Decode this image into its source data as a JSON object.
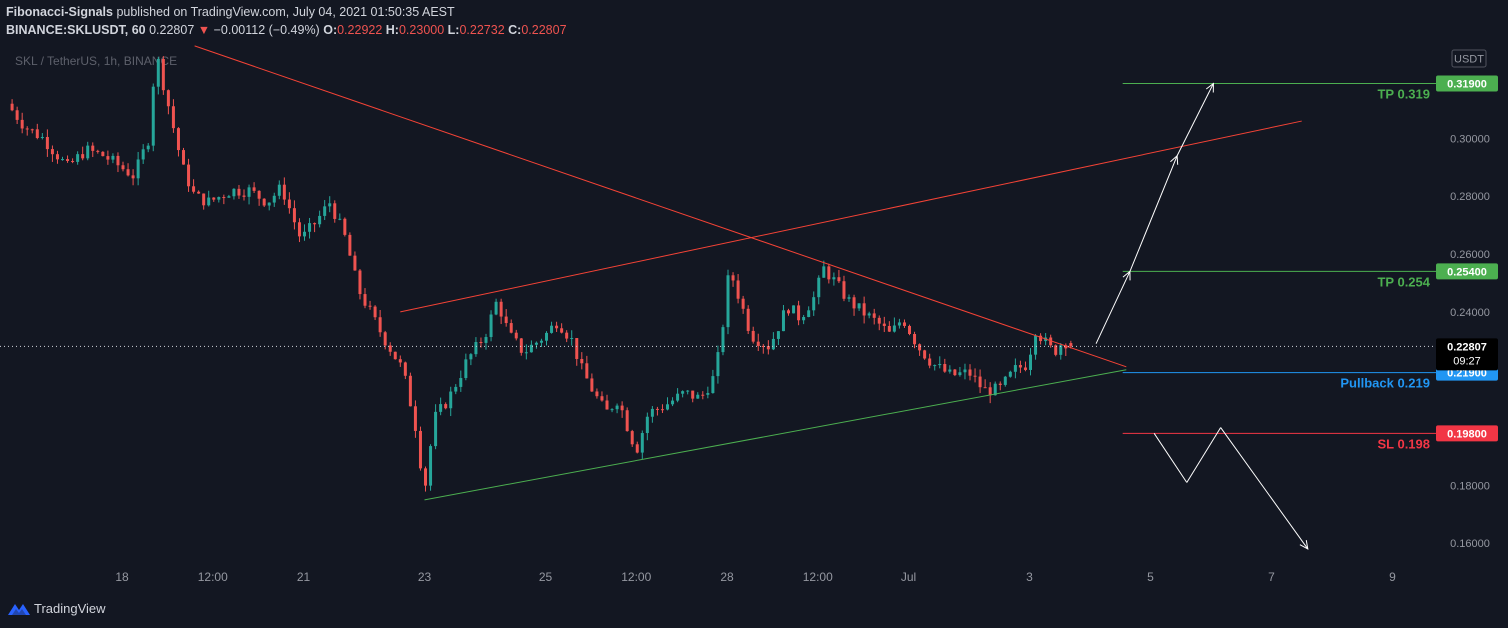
{
  "header": {
    "author": "Fibonacci-Signals",
    "published": "published on TradingView.com, July 04, 2021 01:50:35 AEST",
    "symbol": "BINANCE:SKLUSDT, 60",
    "last": "0.22807",
    "change_arrow": "▼",
    "change": "−0.00112 (−0.49%)",
    "open_label": "O:",
    "open": "0.22922",
    "high_label": "H:",
    "high": "0.23000",
    "low_label": "L:",
    "low": "0.22732",
    "close_label": "C:",
    "close": "0.22807"
  },
  "footer": {
    "brand": "TradingView",
    "logo_icon": "tradingview-logo-icon"
  },
  "colors": {
    "background": "#131722",
    "up": "#26a69a",
    "down": "#ef5350",
    "tp": "#4caf50",
    "pullback": "#2196f3",
    "sl": "#f23645",
    "trendline": "#f44336",
    "support": "#4caf50"
  },
  "chart_data": {
    "type": "candlestick",
    "watermark": "SKL / TetherUS, 1h, BINANCE",
    "currency_label": "USDT",
    "y_ticks": [
      "0.30000",
      "0.28000",
      "0.26000",
      "0.24000",
      "0.18000",
      "0.16000"
    ],
    "ylim": [
      0.149,
      0.333
    ],
    "x_ticks": [
      {
        "label": "18",
        "day": 0.0
      },
      {
        "label": "12:00",
        "day": 0.75
      },
      {
        "label": "21",
        "day": 1.5
      },
      {
        "label": "23",
        "day": 2.5
      },
      {
        "label": "25",
        "day": 3.5
      },
      {
        "label": "12:00",
        "day": 4.25
      },
      {
        "label": "28",
        "day": 5.0
      },
      {
        "label": "12:00",
        "day": 5.75
      },
      {
        "label": "Jul",
        "day": 6.5
      },
      {
        "label": "3",
        "day": 7.5
      },
      {
        "label": "5",
        "day": 8.5
      },
      {
        "label": "7",
        "day": 9.5
      },
      {
        "label": "9",
        "day": 10.5
      }
    ],
    "price_path": [
      [
        -0.95,
        0.312
      ],
      [
        -0.8,
        0.304
      ],
      [
        -0.65,
        0.3
      ],
      [
        -0.45,
        0.29
      ],
      [
        -0.3,
        0.296
      ],
      [
        -0.15,
        0.294
      ],
      [
        0.1,
        0.287
      ],
      [
        0.22,
        0.3
      ],
      [
        0.28,
        0.33
      ],
      [
        0.38,
        0.312
      ],
      [
        0.5,
        0.29
      ],
      [
        0.6,
        0.28
      ],
      [
        0.72,
        0.278
      ],
      [
        0.9,
        0.282
      ],
      [
        1.05,
        0.282
      ],
      [
        1.2,
        0.278
      ],
      [
        1.32,
        0.283
      ],
      [
        1.48,
        0.265
      ],
      [
        1.6,
        0.271
      ],
      [
        1.72,
        0.278
      ],
      [
        1.85,
        0.265
      ],
      [
        1.95,
        0.248
      ],
      [
        2.05,
        0.24
      ],
      [
        2.15,
        0.232
      ],
      [
        2.25,
        0.225
      ],
      [
        2.32,
        0.22
      ],
      [
        2.42,
        0.202
      ],
      [
        2.5,
        0.178
      ],
      [
        2.58,
        0.203
      ],
      [
        2.7,
        0.21
      ],
      [
        2.85,
        0.223
      ],
      [
        3.0,
        0.232
      ],
      [
        3.1,
        0.244
      ],
      [
        3.2,
        0.232
      ],
      [
        3.32,
        0.226
      ],
      [
        3.5,
        0.232
      ],
      [
        3.6,
        0.237
      ],
      [
        3.72,
        0.23
      ],
      [
        3.8,
        0.22
      ],
      [
        3.9,
        0.212
      ],
      [
        4.0,
        0.205
      ],
      [
        4.1,
        0.21
      ],
      [
        4.18,
        0.2
      ],
      [
        4.25,
        0.192
      ],
      [
        4.35,
        0.205
      ],
      [
        4.5,
        0.208
      ],
      [
        4.65,
        0.212
      ],
      [
        4.78,
        0.21
      ],
      [
        4.9,
        0.218
      ],
      [
        4.95,
        0.23
      ],
      [
        5.02,
        0.255
      ],
      [
        5.1,
        0.245
      ],
      [
        5.2,
        0.232
      ],
      [
        5.35,
        0.228
      ],
      [
        5.5,
        0.242
      ],
      [
        5.6,
        0.238
      ],
      [
        5.72,
        0.245
      ],
      [
        5.8,
        0.255
      ],
      [
        5.9,
        0.25
      ],
      [
        6.0,
        0.244
      ],
      [
        6.12,
        0.24
      ],
      [
        6.25,
        0.236
      ],
      [
        6.35,
        0.232
      ],
      [
        6.45,
        0.238
      ],
      [
        6.58,
        0.228
      ],
      [
        6.7,
        0.222
      ],
      [
        6.85,
        0.218
      ],
      [
        7.0,
        0.219
      ],
      [
        7.12,
        0.213
      ],
      [
        7.25,
        0.213
      ],
      [
        7.38,
        0.22
      ],
      [
        7.48,
        0.222
      ],
      [
        7.55,
        0.234
      ],
      [
        7.62,
        0.23
      ],
      [
        7.7,
        0.226
      ],
      [
        7.78,
        0.23
      ],
      [
        7.88,
        0.2281
      ]
    ],
    "ohlc_last": {
      "open": 0.22922,
      "high": 0.23,
      "low": 0.22732,
      "close": 0.22807
    },
    "last_price": {
      "value": "0.22807",
      "countdown": "09:27"
    },
    "levels": [
      {
        "name": "TP 0.319",
        "value": 0.319,
        "tag": "0.31900",
        "color": "#4caf50"
      },
      {
        "name": "TP 0.254",
        "value": 0.254,
        "tag": "0.25400",
        "color": "#4caf50"
      },
      {
        "name": "Pullback 0.219",
        "value": 0.219,
        "tag": "0.21900",
        "color": "#2196f3"
      },
      {
        "name": "SL 0.198",
        "value": 0.198,
        "tag": "0.19800",
        "color": "#f23645"
      }
    ],
    "trendlines": [
      {
        "name": "descending-resistance",
        "color": "#f44336",
        "points": [
          [
            0.6,
            0.332
          ],
          [
            8.3,
            0.221
          ]
        ]
      },
      {
        "name": "rising-channel-top",
        "color": "#f44336",
        "points": [
          [
            2.3,
            0.24
          ],
          [
            9.75,
            0.306
          ]
        ]
      },
      {
        "name": "ascending-support",
        "color": "#4caf50",
        "points": [
          [
            2.5,
            0.175
          ],
          [
            8.3,
            0.22
          ]
        ]
      }
    ],
    "scenario_bullish": [
      [
        8.05,
        0.229
      ],
      [
        8.33,
        0.254
      ],
      [
        8.72,
        0.294
      ],
      [
        9.02,
        0.319
      ]
    ],
    "scenario_bearish": [
      [
        8.53,
        0.198
      ],
      [
        8.8,
        0.181
      ],
      [
        9.08,
        0.2
      ],
      [
        9.8,
        0.158
      ]
    ]
  }
}
